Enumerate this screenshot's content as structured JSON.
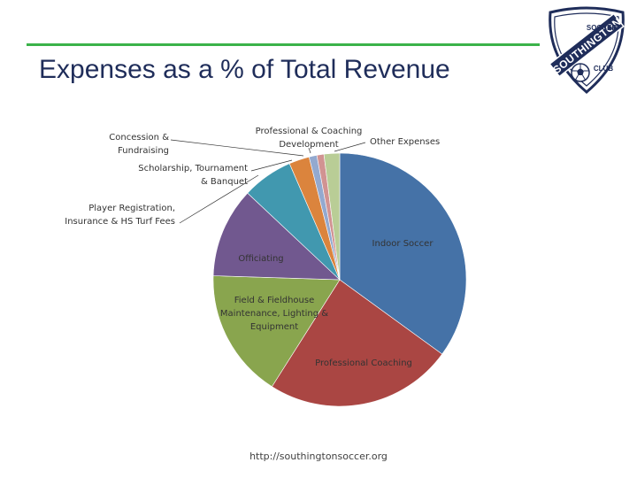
{
  "slide": {
    "title": "Expenses as a % of Total Revenue",
    "footer": "http://southingtonsoccer.org",
    "accent_color": "#3bb34a",
    "title_color": "#1f2d5a"
  },
  "logo": {
    "text": "SOUTHINGTON",
    "small_text_1": "SOCCER",
    "small_text_2": "CLUB",
    "icon": "soccer-ball-shield-icon"
  },
  "chart_data": {
    "type": "pie",
    "title": "",
    "slices": [
      {
        "label": "Indoor Soccer",
        "value": 35.0,
        "color": "#4572a7"
      },
      {
        "label": "Professional Coaching",
        "value": 24.0,
        "color": "#aa4643"
      },
      {
        "label": "Field & Fieldhouse Maintenance, Lighting & Equipment",
        "value": 16.5,
        "color": "#89a54e"
      },
      {
        "label": "Officiating",
        "value": 11.5,
        "color": "#71588f"
      },
      {
        "label": "Player Registration, Insurance & HS Turf Fees",
        "value": 6.5,
        "color": "#4198af"
      },
      {
        "label": "Scholarship, Tournament & Banquet",
        "value": 2.6,
        "color": "#db843d"
      },
      {
        "label": "Concession & Fundraising",
        "value": 1.0,
        "color": "#93a9cf"
      },
      {
        "label": "Professional & Coaching Development",
        "value": 0.9,
        "color": "#d19392"
      },
      {
        "label": "Other Expenses",
        "value": 2.0,
        "color": "#b9cd96"
      }
    ],
    "labels": [
      {
        "lines": [
          "Indoor Soccer"
        ]
      },
      {
        "lines": [
          "Professional Coaching"
        ]
      },
      {
        "lines": [
          "Field & Fieldhouse",
          "Maintenance, Lighting &",
          "Equipment"
        ]
      },
      {
        "lines": [
          "Officiating"
        ]
      },
      {
        "lines": [
          "Player Registration,",
          "Insurance & HS Turf Fees"
        ]
      },
      {
        "lines": [
          "Scholarship, Tournament",
          "& Banquet"
        ]
      },
      {
        "lines": [
          "Concession &",
          "Fundraising"
        ]
      },
      {
        "lines": [
          "Professional & Coaching",
          "Development"
        ]
      },
      {
        "lines": [
          "Other Expenses"
        ]
      }
    ]
  }
}
